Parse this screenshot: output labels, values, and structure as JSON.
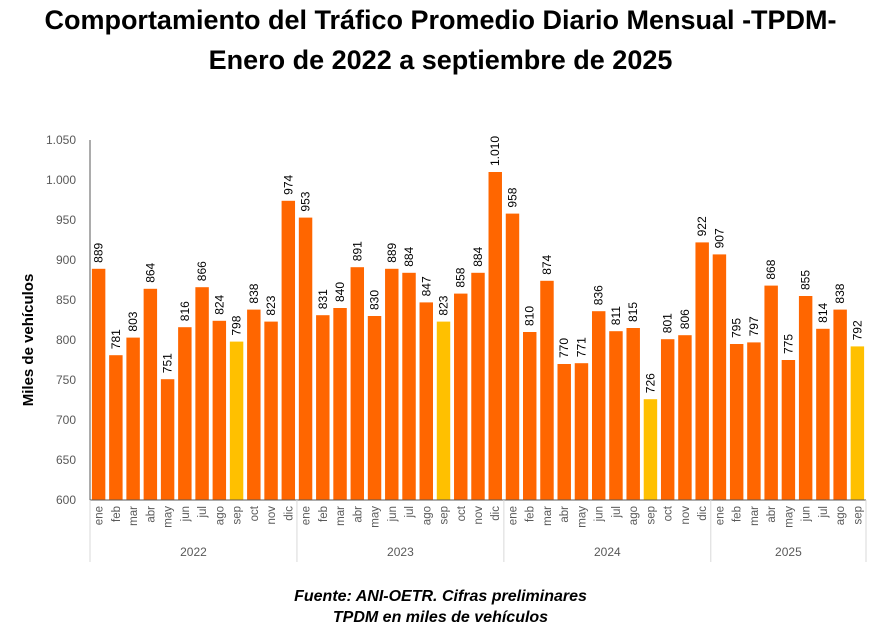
{
  "title_line1": "Comportamiento del Tráfico Promedio Diario Mensual -TPDM-",
  "title_line2": "Enero de 2022 a septiembre de 2025",
  "source_line1": "Fuente: ANI-OETR. Cifras preliminares",
  "source_line2": "TPDM en miles de vehículos",
  "colors": {
    "bar": "#FF6600",
    "highlight": "#FFC000",
    "axis": "#595959",
    "grid": "#D9D9D9"
  },
  "chart_data": {
    "type": "bar",
    "ylabel": "Miles de vehículos",
    "ylim": [
      600,
      1050
    ],
    "yticks": [
      "600",
      "650",
      "700",
      "750",
      "800",
      "850",
      "900",
      "950",
      "1.000",
      "1.050"
    ],
    "grid": false,
    "groups": [
      {
        "year": "2022",
        "months": [
          "ene",
          "feb",
          "mar",
          "abr",
          "may",
          "jun",
          "jul",
          "ago",
          "sep",
          "oct",
          "nov",
          "dic"
        ],
        "values": [
          889,
          781,
          803,
          864,
          751,
          816,
          866,
          824,
          798,
          838,
          823,
          974
        ],
        "labels": [
          "889",
          "781",
          "803",
          "864",
          "751",
          "816",
          "866",
          "824",
          "798",
          "838",
          "823",
          "974"
        ]
      },
      {
        "year": "2023",
        "months": [
          "ene",
          "feb",
          "mar",
          "abr",
          "may",
          "jun",
          "jul",
          "ago",
          "sep",
          "oct",
          "nov",
          "dic"
        ],
        "values": [
          953,
          831,
          840,
          891,
          830,
          889,
          884,
          847,
          823,
          858,
          884,
          1010
        ],
        "labels": [
          "953",
          "831",
          "840",
          "891",
          "830",
          "889",
          "884",
          "847",
          "823",
          "858",
          "884",
          "1.010"
        ]
      },
      {
        "year": "2024",
        "months": [
          "ene",
          "feb",
          "mar",
          "abr",
          "may",
          "jun",
          "jul",
          "ago",
          "sep",
          "oct",
          "nov",
          "dic"
        ],
        "values": [
          958,
          810,
          874,
          770,
          771,
          836,
          811,
          815,
          726,
          801,
          806,
          922
        ],
        "labels": [
          "958",
          "810",
          "874",
          "770",
          "771",
          "836",
          "811",
          "815",
          "726",
          "801",
          "806",
          "922"
        ]
      },
      {
        "year": "2025",
        "months": [
          "ene",
          "feb",
          "mar",
          "abr",
          "may",
          "jun",
          "jul",
          "ago",
          "sep"
        ],
        "values": [
          907,
          795,
          797,
          868,
          775,
          855,
          814,
          838,
          792
        ],
        "labels": [
          "907",
          "795",
          "797",
          "868",
          "775",
          "855",
          "814",
          "838",
          "792"
        ]
      }
    ],
    "highlight_month": "sep"
  }
}
